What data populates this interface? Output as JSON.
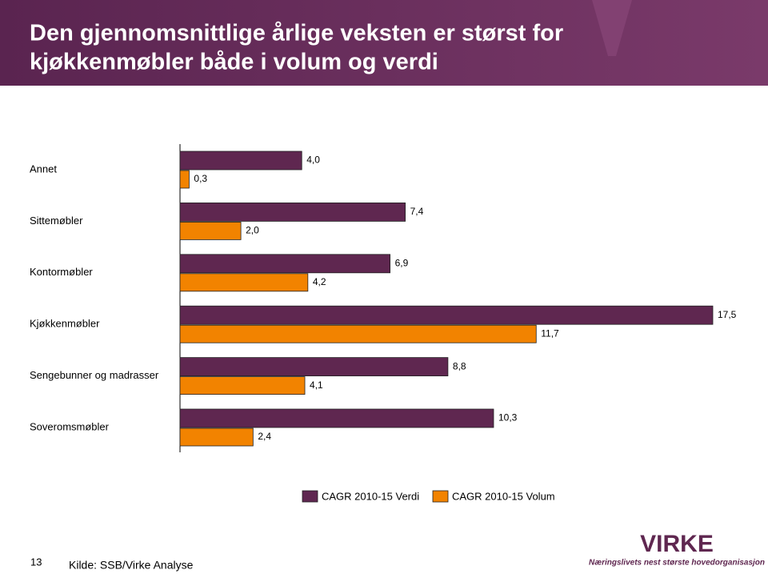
{
  "header": {
    "title_lines": [
      "Den gjennomsnittlige årlige veksten er størst for",
      "kjøkkenmøbler både i volum og verdi"
    ]
  },
  "chart_data": {
    "type": "hbar",
    "categories": [
      "Annet",
      "Sittemøbler",
      "Kontormøbler",
      "Kjøkkenmøbler",
      "Sengebunner og madrasser",
      "Soveromsmøbler"
    ],
    "series": [
      {
        "name": "CAGR 2010-15 Verdi",
        "color": "#5f2750",
        "values": [
          4.0,
          7.4,
          6.9,
          17.5,
          8.8,
          10.3
        ],
        "value_labels": [
          "4,0",
          "7,4",
          "6,9",
          "17,5",
          "8,8",
          "10,3"
        ]
      },
      {
        "name": "CAGR 2010-15 Volum",
        "color": "#f28300",
        "values": [
          0.3,
          2.0,
          4.2,
          11.7,
          4.1,
          2.4
        ],
        "value_labels": [
          "0,3",
          "2,0",
          "4,2",
          "11,7",
          "4,1",
          "2,4"
        ]
      }
    ],
    "xlim": [
      0,
      17.5
    ],
    "legend": "bottom"
  },
  "footer": {
    "page_number": "13",
    "source": "Kilde: SSB/Virke Analyse",
    "logo": "VIRKE",
    "tagline": "Næringslivets nest største hovedorganisasjon"
  }
}
